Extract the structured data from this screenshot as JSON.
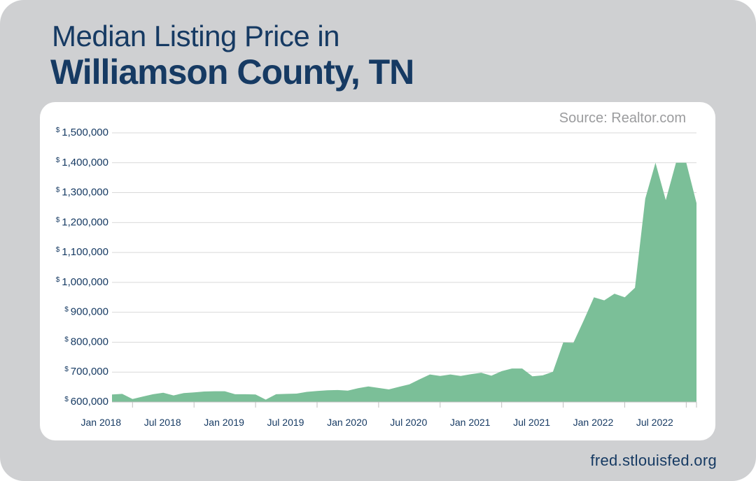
{
  "title_line1": "Median Listing Price in",
  "title_line2": "Williamson County, TN",
  "source": "Source: Realtor.com",
  "footer": "fred.stlouisfed.org",
  "colors": {
    "background": "#cfd0d2",
    "panel": "#ffffff",
    "area": "#7bbf98",
    "title": "#163a63",
    "axis_text": "#163a63",
    "grid": "#d9d9d9",
    "source_text": "#9b9c9e"
  },
  "chart_data": {
    "type": "area",
    "title": "Median Listing Price in Williamson County, TN",
    "xlabel": "",
    "ylabel": "",
    "grid": true,
    "legend": "none",
    "ylim": [
      600000,
      1500000
    ],
    "xlim": [
      "2017-11",
      "2022-08"
    ],
    "y_ticks": [
      600000,
      700000,
      800000,
      900000,
      1000000,
      1100000,
      1200000,
      1300000,
      1400000,
      1500000
    ],
    "y_tick_labels": [
      "600,000",
      "700,000",
      "800,000",
      "900,000",
      "1,000,000",
      "1,100,000",
      "1,200,000",
      "1,300,000",
      "1,400,000",
      "1,500,000"
    ],
    "y_currency_symbol": "$",
    "x_tick_labels": [
      "Jan 2018",
      "Jul 2018",
      "Jan 2019",
      "Jul 2019",
      "Jan 2020",
      "Jul 2020",
      "Jan 2021",
      "Jul 2021",
      "Jan 2022",
      "Jul 2022"
    ],
    "x_ticks": [
      "2018-01",
      "2018-07",
      "2019-01",
      "2019-07",
      "2020-01",
      "2020-07",
      "2021-01",
      "2021-07",
      "2022-01",
      "2022-07"
    ],
    "x": [
      "2017-11",
      "2017-12",
      "2018-01",
      "2018-02",
      "2018-03",
      "2018-04",
      "2018-05",
      "2018-06",
      "2018-07",
      "2018-08",
      "2018-09",
      "2018-10",
      "2018-11",
      "2018-12",
      "2019-01",
      "2019-02",
      "2019-03",
      "2019-04",
      "2019-05",
      "2019-06",
      "2019-07",
      "2019-08",
      "2019-09",
      "2019-10",
      "2019-11",
      "2019-12",
      "2020-01",
      "2020-02",
      "2020-03",
      "2020-04",
      "2020-05",
      "2020-06",
      "2020-07",
      "2020-08",
      "2020-09",
      "2020-10",
      "2020-11",
      "2020-12",
      "2021-01",
      "2021-02",
      "2021-03",
      "2021-04",
      "2021-05",
      "2021-06",
      "2021-07",
      "2021-08",
      "2021-09",
      "2021-10",
      "2021-11",
      "2021-12",
      "2022-01",
      "2022-02",
      "2022-03",
      "2022-04",
      "2022-05",
      "2022-06",
      "2022-07",
      "2022-08"
    ],
    "values": [
      625000,
      627000,
      610000,
      618000,
      626000,
      631000,
      622000,
      630000,
      632000,
      635000,
      636000,
      636000,
      626000,
      626000,
      625000,
      608000,
      626000,
      627000,
      628000,
      634000,
      637000,
      639000,
      640000,
      638000,
      646000,
      652000,
      647000,
      642000,
      651000,
      659000,
      676000,
      692000,
      687000,
      692000,
      687000,
      693000,
      698000,
      688000,
      703000,
      712000,
      712000,
      686000,
      689000,
      701000,
      799000,
      798000,
      873000,
      950000,
      940000,
      962000,
      950000,
      982000,
      1280000,
      1400000,
      1275000,
      1400000,
      1400000,
      1265000
    ]
  }
}
